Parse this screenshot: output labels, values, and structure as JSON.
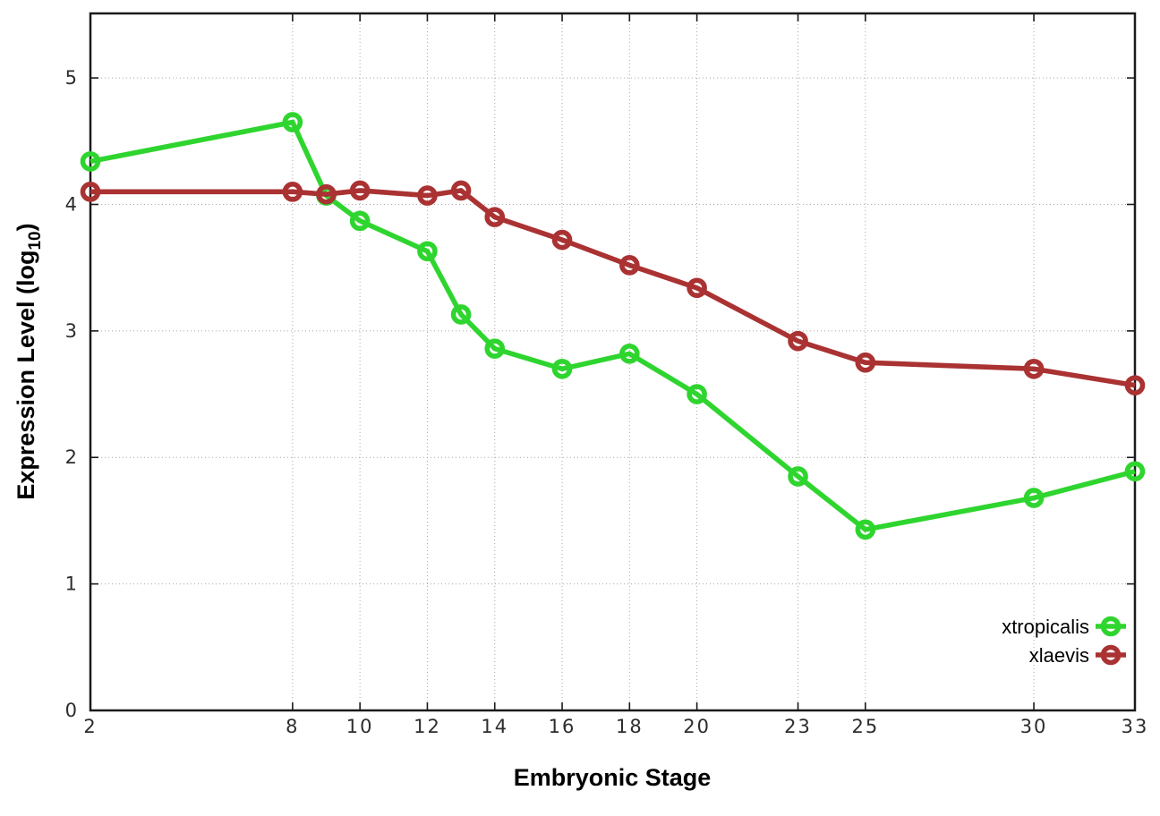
{
  "chart_data": {
    "type": "line",
    "title": "",
    "xlabel": "Embryonic Stage",
    "ylabel": "Expression Level (log10)",
    "ylabel_parts": {
      "base": "Expression Level (log",
      "sub": "10",
      "suffix": ")"
    },
    "x": [
      2,
      8,
      9,
      10,
      12,
      13,
      14,
      16,
      18,
      20,
      23,
      25,
      30,
      33
    ],
    "series": [
      {
        "name": "xtropicalis",
        "color": "#2fd52f",
        "marker": "open-circle",
        "values": [
          4.34,
          4.65,
          4.07,
          3.87,
          3.63,
          3.13,
          2.86,
          2.7,
          2.82,
          2.5,
          1.85,
          1.43,
          1.68,
          1.89
        ]
      },
      {
        "name": "xlaevis",
        "color": "#aa3232",
        "marker": "open-circle",
        "values": [
          4.1,
          4.1,
          4.08,
          4.11,
          4.07,
          4.11,
          3.9,
          3.72,
          3.52,
          3.34,
          2.92,
          2.75,
          2.7,
          2.57
        ]
      }
    ],
    "xlim": [
      2,
      33
    ],
    "ylim": [
      0,
      5.51
    ],
    "xticks": [
      2,
      8,
      10,
      12,
      14,
      16,
      18,
      20,
      23,
      25,
      30,
      33
    ],
    "yticks": [
      0,
      1,
      2,
      3,
      4,
      5
    ],
    "grid": true,
    "grid_style": "dotted",
    "legend_position": "inside-bottom-right",
    "colors": {
      "background": "#ffffff",
      "frame": "#1a1a1a",
      "grid": "#a8a8a8",
      "tick_label": "#2d2d2d",
      "axis_label": "#000000"
    }
  }
}
